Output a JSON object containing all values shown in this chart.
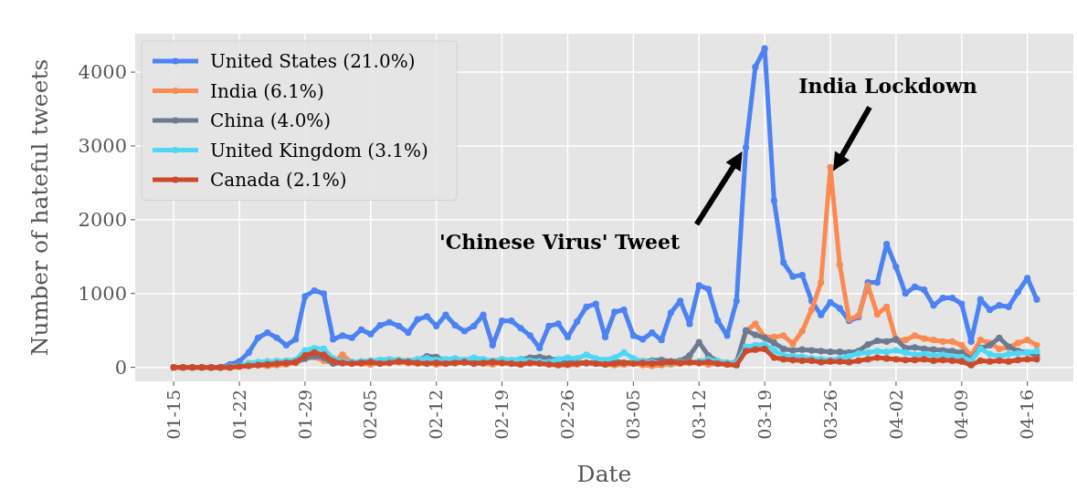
{
  "chart_data": {
    "type": "line",
    "xlabel": "Date",
    "ylabel": "Number of hateful tweets",
    "categories": [
      "01-15",
      null,
      null,
      null,
      null,
      null,
      null,
      "01-22",
      null,
      null,
      null,
      null,
      null,
      null,
      "01-29",
      null,
      null,
      null,
      null,
      null,
      null,
      "02-05",
      null,
      null,
      null,
      null,
      null,
      null,
      "02-12",
      null,
      null,
      null,
      null,
      null,
      null,
      "02-19",
      null,
      null,
      null,
      null,
      null,
      null,
      "02-26",
      null,
      null,
      null,
      null,
      null,
      null,
      "03-05",
      null,
      null,
      null,
      null,
      null,
      null,
      "03-12",
      null,
      null,
      null,
      null,
      null,
      null,
      "03-19",
      null,
      null,
      null,
      null,
      null,
      null,
      "03-26",
      null,
      null,
      null,
      null,
      null,
      null,
      "04-02",
      null,
      null,
      null,
      null,
      null,
      null,
      "04-09",
      null,
      null,
      null,
      null,
      null,
      null,
      "04-16",
      null
    ],
    "series": [
      {
        "name": "United States (21.0%)",
        "color": "#4c82f2",
        "values": [
          null,
          null,
          null,
          null,
          0,
          0,
          40,
          80,
          200,
          400,
          470,
          400,
          300,
          380,
          960,
          1040,
          1000,
          380,
          430,
          400,
          510,
          450,
          570,
          610,
          560,
          470,
          650,
          690,
          560,
          710,
          570,
          490,
          560,
          710,
          300,
          630,
          630,
          530,
          430,
          260,
          560,
          590,
          410,
          620,
          820,
          860,
          410,
          750,
          780,
          430,
          380,
          470,
          370,
          740,
          900,
          590,
          1110,
          1060,
          630,
          430,
          900,
          2980,
          4070,
          4320,
          2260,
          1420,
          1230,
          1250,
          900,
          710,
          880,
          800,
          630,
          680,
          1150,
          1150,
          1670,
          1360,
          1000,
          1090,
          1050,
          840,
          940,
          940,
          860,
          350,
          920,
          780,
          840,
          820,
          1020,
          1210,
          920
        ]
      },
      {
        "name": "India (6.1%)",
        "color": "#fb8a52",
        "values": [
          null,
          null,
          null,
          null,
          0,
          0,
          0,
          10,
          20,
          30,
          20,
          30,
          40,
          60,
          120,
          140,
          90,
          60,
          170,
          60,
          50,
          40,
          60,
          80,
          70,
          60,
          50,
          60,
          40,
          50,
          60,
          70,
          60,
          50,
          40,
          60,
          50,
          40,
          60,
          70,
          50,
          40,
          30,
          40,
          60,
          50,
          40,
          30,
          40,
          50,
          30,
          20,
          30,
          40,
          50,
          60,
          60,
          40,
          50,
          40,
          30,
          490,
          590,
          410,
          410,
          430,
          320,
          490,
          780,
          1150,
          2710,
          1390,
          650,
          700,
          1110,
          720,
          820,
          370,
          370,
          430,
          390,
          370,
          350,
          350,
          300,
          160,
          370,
          330,
          250,
          270,
          330,
          370,
          300
        ]
      },
      {
        "name": "China (4.0%)",
        "color": "#6c7a92",
        "values": [
          0,
          0,
          0,
          0,
          0,
          0,
          10,
          20,
          40,
          60,
          70,
          80,
          60,
          70,
          120,
          150,
          130,
          50,
          60,
          70,
          70,
          80,
          90,
          100,
          90,
          80,
          100,
          150,
          140,
          90,
          80,
          70,
          90,
          80,
          70,
          80,
          90,
          110,
          130,
          140,
          120,
          100,
          80,
          70,
          60,
          70,
          80,
          90,
          60,
          70,
          80,
          90,
          100,
          80,
          90,
          160,
          340,
          160,
          80,
          60,
          70,
          500,
          440,
          400,
          330,
          250,
          230,
          240,
          230,
          220,
          210,
          210,
          200,
          220,
          310,
          360,
          350,
          380,
          260,
          270,
          250,
          240,
          230,
          220,
          200,
          110,
          260,
          300,
          400,
          280,
          220,
          200,
          160
        ]
      },
      {
        "name": "United Kingdom (3.1%)",
        "color": "#4dd8f6",
        "values": [
          null,
          null,
          null,
          null,
          0,
          0,
          10,
          20,
          60,
          70,
          80,
          80,
          90,
          100,
          230,
          260,
          250,
          120,
          80,
          70,
          80,
          90,
          100,
          110,
          100,
          90,
          110,
          120,
          100,
          110,
          120,
          100,
          130,
          110,
          90,
          110,
          100,
          110,
          90,
          80,
          70,
          110,
          130,
          120,
          170,
          120,
          100,
          130,
          200,
          120,
          80,
          70,
          60,
          60,
          70,
          70,
          80,
          110,
          80,
          60,
          60,
          280,
          300,
          310,
          230,
          160,
          150,
          140,
          120,
          110,
          100,
          120,
          150,
          190,
          200,
          220,
          210,
          230,
          200,
          170,
          180,
          160,
          170,
          150,
          140,
          90,
          250,
          180,
          150,
          180,
          190,
          200,
          220
        ]
      },
      {
        "name": "Canada (2.1%)",
        "color": "#cc4a2c",
        "values": [
          0,
          0,
          0,
          0,
          0,
          0,
          0,
          10,
          20,
          30,
          40,
          50,
          60,
          70,
          160,
          200,
          170,
          80,
          60,
          50,
          60,
          70,
          50,
          60,
          80,
          70,
          60,
          50,
          60,
          50,
          60,
          70,
          50,
          60,
          70,
          60,
          50,
          40,
          60,
          50,
          40,
          30,
          40,
          50,
          60,
          50,
          40,
          50,
          60,
          50,
          60,
          50,
          60,
          70,
          60,
          70,
          60,
          70,
          50,
          40,
          30,
          220,
          240,
          250,
          130,
          110,
          100,
          90,
          90,
          70,
          80,
          80,
          70,
          90,
          110,
          130,
          120,
          110,
          100,
          100,
          110,
          90,
          100,
          90,
          80,
          30,
          90,
          80,
          90,
          80,
          100,
          110,
          110
        ]
      }
    ],
    "ylim": [
      -190,
      4520
    ],
    "yticks": [
      0,
      1000,
      2000,
      3000,
      4000
    ],
    "grid": true,
    "legend": "top left",
    "marker": "circle",
    "line_style": "solid",
    "annotations": [
      "'Chinese Virus' Tweet",
      "India Lockdown"
    ]
  }
}
